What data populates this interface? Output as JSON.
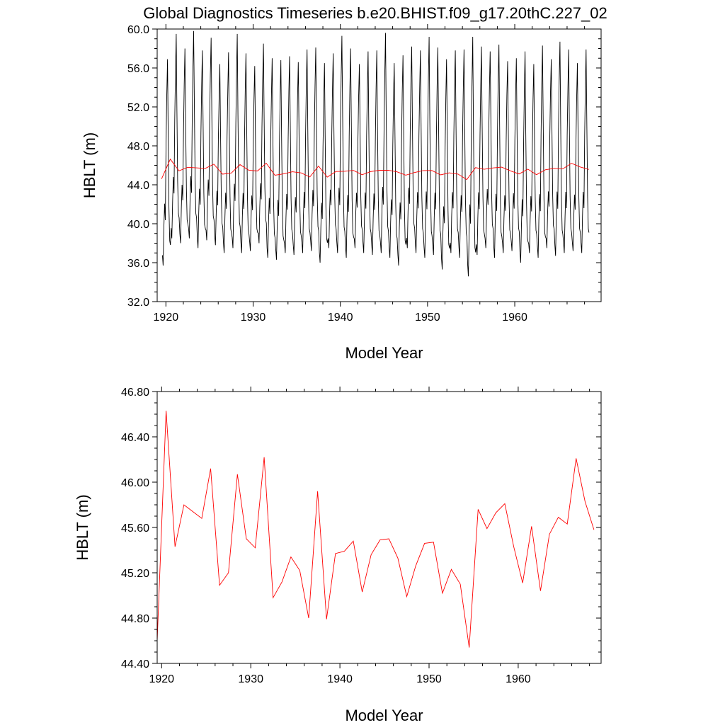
{
  "figure": {
    "title": "Global Diagnostics Timeseries b.e20.BHIST.f09_g17.20thC.227_02"
  },
  "chart_data": [
    {
      "type": "line",
      "panel": "top",
      "xlabel": "Model Year",
      "ylabel": "HBLT (m)",
      "xlim": [
        1919.0,
        1969.9
      ],
      "ylim": [
        32.0,
        60.0
      ],
      "xticks": [
        1920,
        1930,
        1940,
        1950,
        1960
      ],
      "xtick_labels": [
        "1920",
        "1930",
        "1940",
        "1950",
        "1960"
      ],
      "yticks": [
        32,
        36,
        40,
        44,
        48,
        52,
        56,
        60
      ],
      "ytick_labels": [
        "32.0",
        "36.0",
        "40.0",
        "44.0",
        "48.0",
        "52.0",
        "56.0",
        "60.0"
      ],
      "grid": false,
      "series": [
        {
          "color": "#000000",
          "x_start": 1919.6,
          "step": 0.08333,
          "year_peaks": [
            56.9,
            59.5,
            58.0,
            59.8,
            57.8,
            59.1,
            56.4,
            57.6,
            59.5,
            57.5,
            56.2,
            58.5,
            57.0,
            56.8,
            57.2,
            56.6,
            57.9,
            58.1,
            56.5,
            57.5,
            59.3,
            58.0,
            56.4,
            57.7,
            57.8,
            59.6,
            56.5,
            57.3,
            58.2,
            57.8,
            59.2,
            58.1,
            56.9,
            57.8,
            57.9,
            59.2,
            58.2,
            57.7,
            58.4,
            56.7,
            57.0,
            57.7,
            56.4,
            58.3,
            56.9,
            58.7,
            57.9,
            56.5,
            57.9
          ],
          "year_troughs": [
            35.7,
            38.5,
            38.0,
            38.5,
            37.5,
            38.3,
            37.8,
            37.0,
            37.5,
            37.0,
            37.2,
            38.0,
            36.5,
            36.3,
            37.0,
            36.8,
            37.0,
            37.2,
            36.0,
            37.5,
            37.0,
            36.5,
            37.5,
            37.0,
            36.8,
            37.0,
            36.5,
            35.7,
            37.5,
            37.0,
            36.5,
            36.8,
            35.3,
            37.0,
            36.5,
            34.6,
            36.8,
            37.5,
            36.5,
            37.0,
            37.2,
            36.0,
            37.0,
            36.5,
            37.5,
            36.7,
            37.0,
            37.2,
            37.0
          ],
          "values_description": "monthly HBLT seasonal cycle"
        },
        {
          "color": "#ff0000",
          "x": [
            1919.5,
            1920.5,
            1921.5,
            1922.5,
            1923.5,
            1924.5,
            1925.5,
            1926.5,
            1927.5,
            1928.5,
            1929.5,
            1930.5,
            1931.5,
            1932.5,
            1933.5,
            1934.5,
            1935.5,
            1936.5,
            1937.5,
            1938.5,
            1939.5,
            1940.5,
            1941.5,
            1942.5,
            1943.5,
            1944.5,
            1945.5,
            1946.5,
            1947.5,
            1948.5,
            1949.5,
            1950.5,
            1951.5,
            1952.5,
            1953.5,
            1954.5,
            1955.5,
            1956.5,
            1957.5,
            1958.5,
            1959.5,
            1960.5,
            1961.5,
            1962.5,
            1963.5,
            1964.5,
            1965.5,
            1966.5,
            1967.5,
            1968.5
          ],
          "values": [
            44.6,
            46.63,
            45.43,
            45.8,
            45.74,
            45.68,
            46.12,
            45.09,
            45.2,
            46.07,
            45.5,
            45.42,
            46.22,
            44.98,
            45.12,
            45.34,
            45.22,
            44.8,
            45.92,
            44.79,
            45.37,
            45.39,
            45.48,
            45.03,
            45.36,
            45.49,
            45.5,
            45.33,
            44.99,
            45.26,
            45.46,
            45.47,
            45.02,
            45.23,
            45.1,
            44.54,
            45.76,
            45.59,
            45.73,
            45.81,
            45.43,
            45.11,
            45.61,
            45.04,
            45.54,
            45.69,
            45.63,
            46.21,
            45.83,
            45.58
          ]
        }
      ]
    },
    {
      "type": "line",
      "panel": "bottom",
      "xlabel": "Model Year",
      "ylabel": "HBLT (m)",
      "xlim": [
        1919.5,
        1969.3
      ],
      "ylim": [
        44.4,
        46.8
      ],
      "xticks": [
        1920,
        1930,
        1940,
        1950,
        1960
      ],
      "xtick_labels": [
        "1920",
        "1930",
        "1940",
        "1950",
        "1960"
      ],
      "yticks": [
        44.4,
        44.8,
        45.2,
        45.6,
        46.0,
        46.4,
        46.8
      ],
      "ytick_labels": [
        "44.40",
        "44.80",
        "45.20",
        "45.60",
        "46.00",
        "46.40",
        "46.80"
      ],
      "grid": false,
      "series": [
        {
          "color": "#ff0000",
          "x": [
            1919.5,
            1920.5,
            1921.5,
            1922.5,
            1923.5,
            1924.5,
            1925.5,
            1926.5,
            1927.5,
            1928.5,
            1929.5,
            1930.5,
            1931.5,
            1932.5,
            1933.5,
            1934.5,
            1935.5,
            1936.5,
            1937.5,
            1938.5,
            1939.5,
            1940.5,
            1941.5,
            1942.5,
            1943.5,
            1944.5,
            1945.5,
            1946.5,
            1947.5,
            1948.5,
            1949.5,
            1950.5,
            1951.5,
            1952.5,
            1953.5,
            1954.5,
            1955.5,
            1956.5,
            1957.5,
            1958.5,
            1959.5,
            1960.5,
            1961.5,
            1962.5,
            1963.5,
            1964.5,
            1965.5,
            1966.5,
            1967.5,
            1968.5
          ],
          "values": [
            44.6,
            46.63,
            45.43,
            45.8,
            45.74,
            45.68,
            46.12,
            45.09,
            45.2,
            46.07,
            45.5,
            45.42,
            46.22,
            44.98,
            45.12,
            45.34,
            45.22,
            44.8,
            45.92,
            44.79,
            45.37,
            45.39,
            45.48,
            45.03,
            45.36,
            45.49,
            45.5,
            45.33,
            44.99,
            45.26,
            45.46,
            45.47,
            45.02,
            45.23,
            45.1,
            44.54,
            45.76,
            45.59,
            45.73,
            45.81,
            45.43,
            45.11,
            45.61,
            45.04,
            45.54,
            45.69,
            45.63,
            46.21,
            45.83,
            45.58
          ]
        }
      ]
    }
  ]
}
